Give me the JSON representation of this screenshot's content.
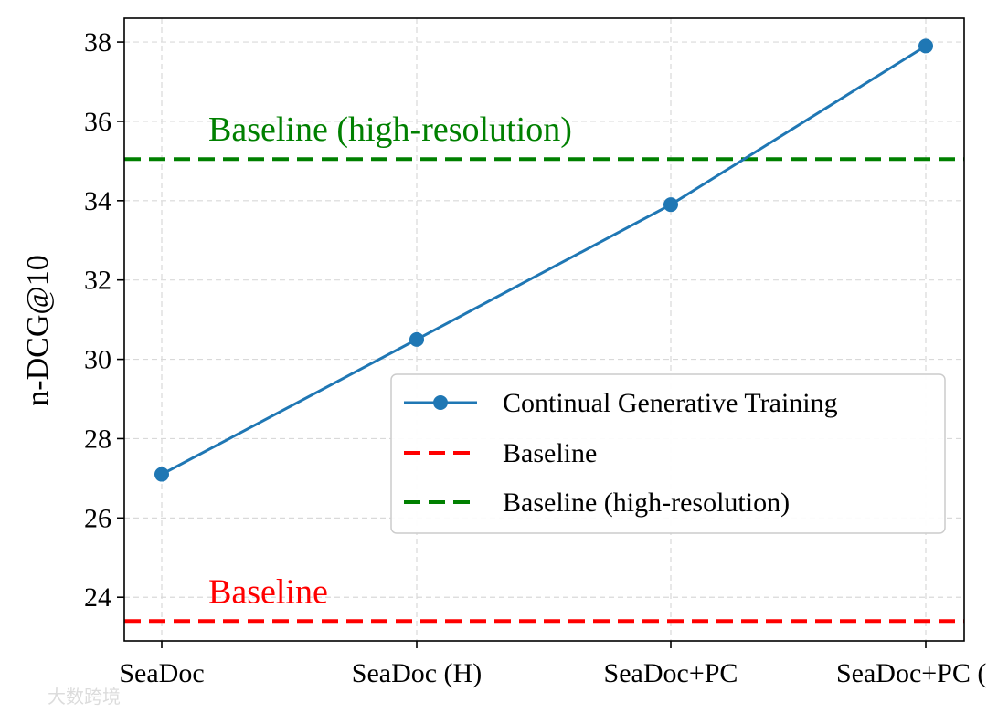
{
  "chart_data": {
    "type": "line",
    "categories": [
      "SeaDoc",
      "SeaDoc (H)",
      "SeaDoc+PC",
      "SeaDoc+PC (H)"
    ],
    "series": [
      {
        "name": "Continual Generative Training",
        "values": [
          27.1,
          30.5,
          33.9,
          37.9
        ],
        "color": "#1f77b4",
        "style": "solid-marker"
      }
    ],
    "reference_lines": [
      {
        "name": "Baseline",
        "value": 23.4,
        "color": "#ff0000",
        "style": "dashed",
        "annotation": "Baseline"
      },
      {
        "name": "Baseline (high-resolution)",
        "value": 35.05,
        "color": "#008000",
        "style": "dashed",
        "annotation": "Baseline (high-resolution)"
      }
    ],
    "ylabel": "n-DCG@10",
    "xlabel": "",
    "ylim": [
      22.9,
      38.6
    ],
    "yticks": [
      24,
      26,
      28,
      30,
      32,
      34,
      36,
      38
    ],
    "grid": true,
    "legend_position": "center-right"
  },
  "watermark": "大数跨境"
}
